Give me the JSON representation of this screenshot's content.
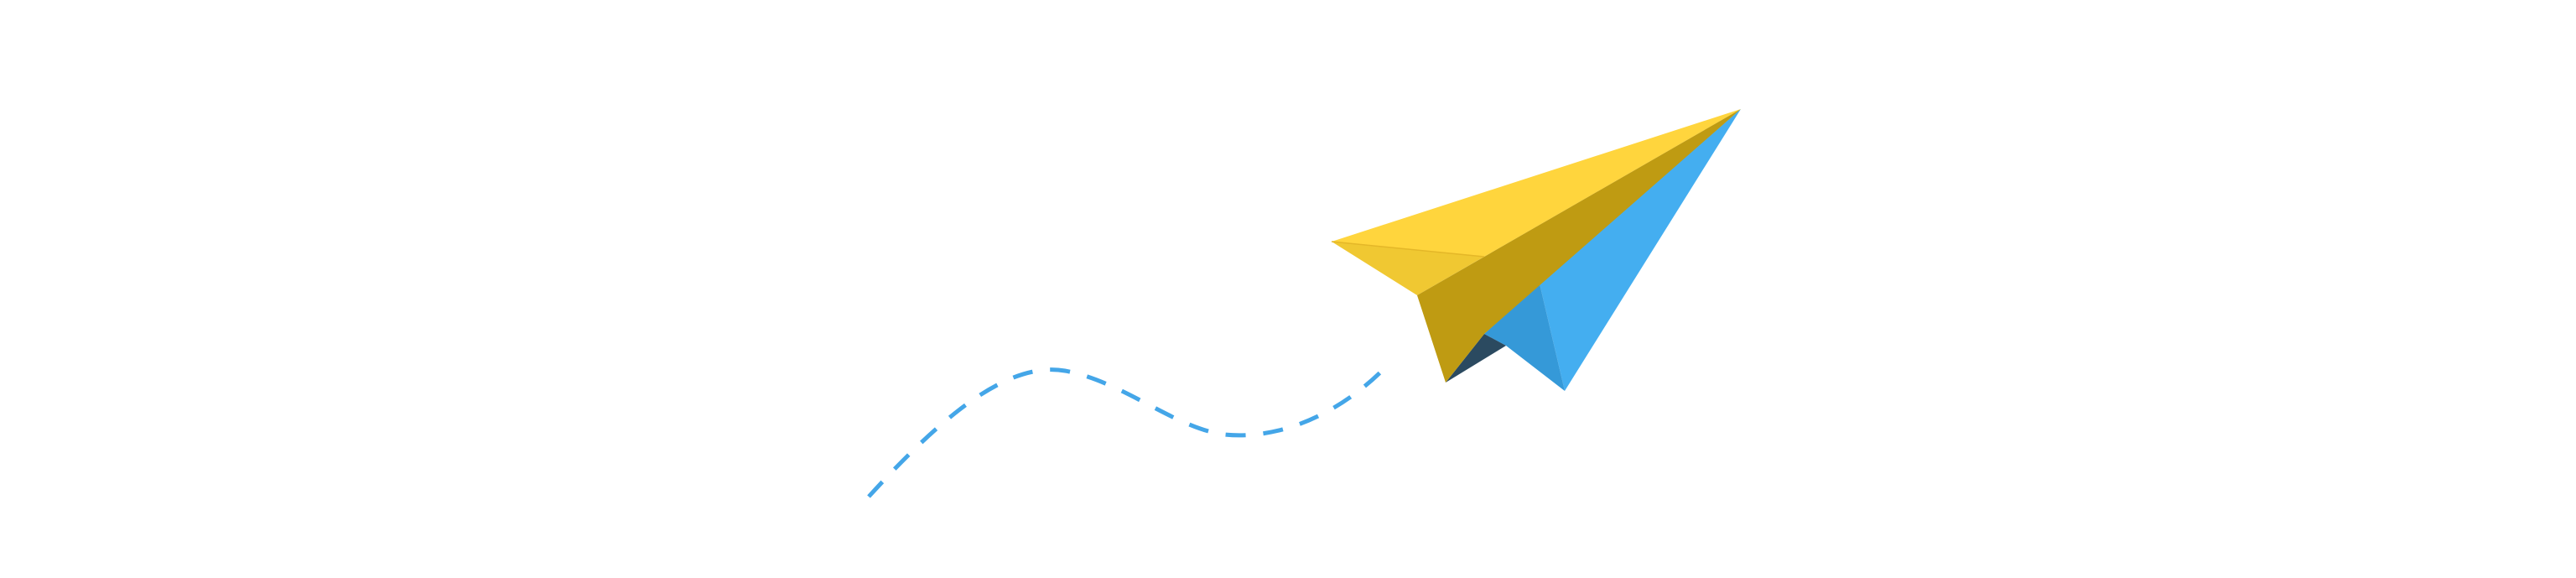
{
  "illustration": {
    "subject": "paper-plane",
    "colors": {
      "background": "#ffffff",
      "trail": "#44a6e8",
      "wing_top": "#ffd53d",
      "wing_under": "#f0c832",
      "fold_left": "#e4b728",
      "keel": "#bf9b12",
      "keel_dark": "#b29010",
      "body_light": "#44aef0",
      "body_mid": "#3599d8",
      "tail_dark": "#2b4a60"
    }
  }
}
